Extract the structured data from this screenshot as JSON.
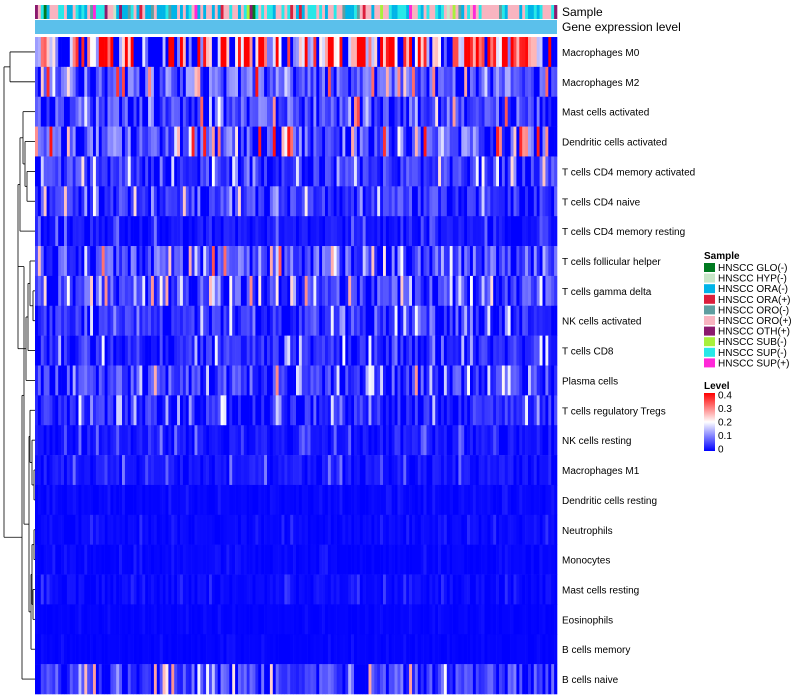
{
  "chart_data": {
    "type": "heatmap",
    "title": "",
    "annotation_labels": [
      "Sample",
      "Gene expression level"
    ],
    "rows": [
      "Macrophages M0",
      "Macrophages M2",
      "Mast cells activated",
      "Dendritic cells activated",
      "T cells CD4 memory activated",
      "T cells CD4 naive",
      "T cells CD4 memory resting",
      "T cells follicular helper",
      "T cells gamma delta",
      "NK cells activated",
      "T cells CD8",
      "Plasma cells",
      "T cells regulatory  Tregs",
      "NK cells resting",
      "Macrophages M1",
      "Dendritic cells resting",
      "Neutrophils",
      "Monocytes",
      "Mast cells resting",
      "Eosinophils",
      "B cells memory",
      "B cells naive"
    ],
    "row_mean_levels": [
      0.27,
      0.08,
      0.07,
      0.08,
      0.05,
      0.05,
      0.02,
      0.07,
      0.06,
      0.04,
      0.04,
      0.06,
      0.04,
      0.02,
      0.02,
      0.005,
      0.008,
      0.005,
      0.01,
      0.003,
      0.003,
      0.06
    ],
    "n_samples": 180,
    "color_scale": {
      "title": "Level",
      "range": [
        0,
        0.4
      ],
      "ticks": [
        "0.4",
        "0.3",
        "0.2",
        "0.1",
        "0"
      ],
      "tick_values": [
        0.4,
        0.3,
        0.2,
        0.1,
        0
      ],
      "low_color": "#0000ff",
      "mid_color": "#ffffff",
      "high_color": "#ff0000"
    },
    "sample_legend": {
      "title": "Sample",
      "items": [
        {
          "label": "HNSCC GLO(-)",
          "color": "#007a20"
        },
        {
          "label": "HNSCC HYP(-)",
          "color": "#c8e6c8"
        },
        {
          "label": "HNSCC ORA(-)",
          "color": "#00b4e8"
        },
        {
          "label": "HNSCC ORA(+)",
          "color": "#dc1e3c"
        },
        {
          "label": "HNSCC ORO(-)",
          "color": "#5f9ea0"
        },
        {
          "label": "HNSCC ORO(+)",
          "color": "#f8b4c0"
        },
        {
          "label": "HNSCC OTH(+)",
          "color": "#8b1a6e"
        },
        {
          "label": "HNSCC SUB(-)",
          "color": "#a8f03c"
        },
        {
          "label": "HNSCC SUP(-)",
          "color": "#28e8e8"
        },
        {
          "label": "HNSCC SUP(+)",
          "color": "#ff28d8"
        }
      ]
    },
    "sample_mix": [
      0.01,
      0.02,
      0.3,
      0.02,
      0.05,
      0.35,
      0.02,
      0.01,
      0.2,
      0.02
    ],
    "expression_level_band_color": "#5bc0eb"
  }
}
